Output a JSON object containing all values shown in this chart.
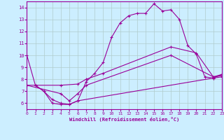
{
  "xlabel": "Windchill (Refroidissement éolien,°C)",
  "background_color": "#cceeff",
  "grid_color": "#b0cccc",
  "line_color": "#990099",
  "xlim": [
    0,
    23
  ],
  "ylim": [
    5.5,
    14.5
  ],
  "xticks": [
    0,
    1,
    2,
    3,
    4,
    5,
    6,
    7,
    8,
    9,
    10,
    11,
    12,
    13,
    14,
    15,
    16,
    17,
    18,
    19,
    20,
    21,
    22,
    23
  ],
  "yticks": [
    6,
    7,
    8,
    9,
    10,
    11,
    12,
    13,
    14
  ],
  "series": [
    {
      "x": [
        0,
        1,
        2,
        3,
        4,
        5,
        6,
        7,
        8,
        9,
        10,
        11,
        12,
        13,
        14,
        15,
        16,
        17,
        18,
        19,
        20,
        21,
        22,
        23
      ],
      "y": [
        10.0,
        7.5,
        7.0,
        6.0,
        5.9,
        5.9,
        6.2,
        7.8,
        8.5,
        9.4,
        11.5,
        12.7,
        13.3,
        13.5,
        13.5,
        14.3,
        13.7,
        13.8,
        13.0,
        10.8,
        10.1,
        8.2,
        8.1,
        8.4
      ]
    },
    {
      "x": [
        0,
        4,
        6,
        7,
        9,
        17,
        20,
        22,
        23
      ],
      "y": [
        7.5,
        7.5,
        7.6,
        8.0,
        8.5,
        10.7,
        10.2,
        8.2,
        8.4
      ]
    },
    {
      "x": [
        0,
        4,
        5,
        6,
        7,
        17,
        22,
        23
      ],
      "y": [
        7.5,
        6.8,
        6.2,
        6.8,
        7.5,
        10.0,
        8.2,
        8.3
      ]
    },
    {
      "x": [
        1,
        2,
        3,
        4,
        5,
        6,
        22,
        23
      ],
      "y": [
        7.5,
        7.0,
        6.3,
        6.0,
        5.9,
        6.2,
        8.1,
        8.2
      ]
    }
  ]
}
